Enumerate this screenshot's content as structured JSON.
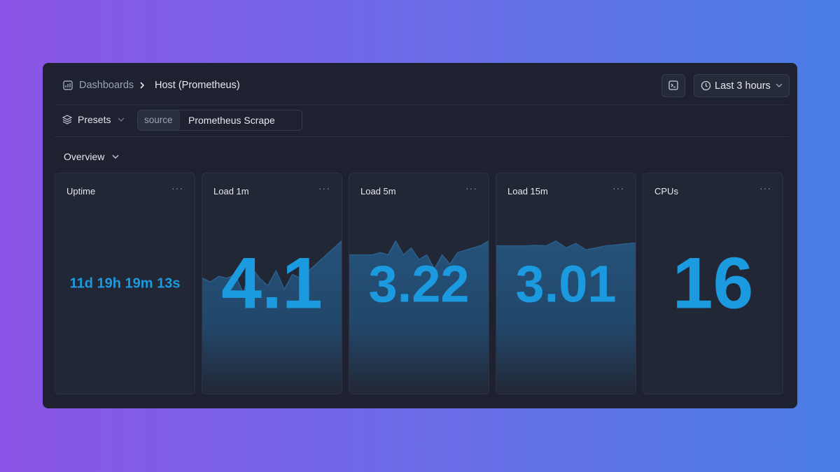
{
  "breadcrumb": {
    "parent": "Dashboards",
    "current": "Host (Prometheus)"
  },
  "time_range": "Last 3 hours",
  "filters": {
    "presets": "Presets",
    "source_key": "source",
    "source_value": "Prometheus Scrape"
  },
  "section": "Overview",
  "panels": [
    {
      "title": "Uptime",
      "value": "11d 19h 19m 13s"
    },
    {
      "title": "Load 1m",
      "value": 4.1,
      "sparkline": [
        3.1,
        3.0,
        3.15,
        3.1,
        3.2,
        2.7,
        3.4,
        3.1,
        2.9,
        3.3,
        2.8,
        3.2,
        3.1,
        3.3,
        3.5,
        3.7,
        3.9,
        4.1
      ]
    },
    {
      "title": "Load 5m",
      "value": 3.22,
      "sparkline": [
        3.0,
        3.0,
        3.0,
        3.0,
        3.05,
        3.0,
        3.3,
        3.0,
        3.15,
        2.9,
        3.0,
        2.7,
        3.0,
        2.8,
        3.05,
        3.1,
        3.15,
        3.2,
        3.3
      ]
    },
    {
      "title": "Load 15m",
      "value": 3.01,
      "sparkline": [
        3.0,
        3.0,
        3.0,
        3.0,
        3.01,
        3.0,
        3.1,
        2.96,
        3.05,
        2.92,
        2.96,
        3.0,
        3.02,
        3.04,
        3.06
      ]
    },
    {
      "title": "CPUs",
      "value": 16
    }
  ]
}
